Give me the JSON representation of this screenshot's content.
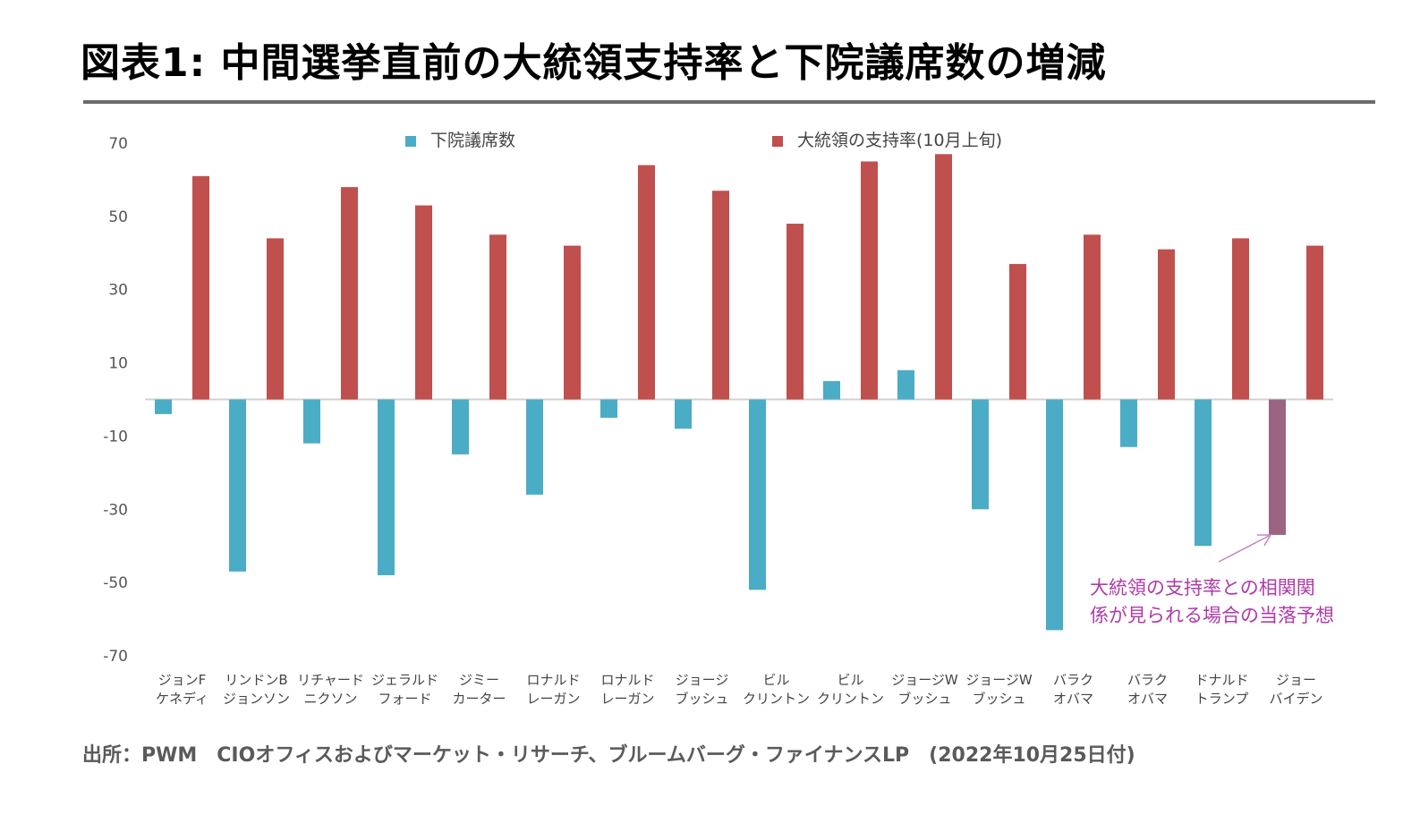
{
  "title": "図表1: 中間選挙直前の大統領支持率と下院議席数の増減",
  "source": "出所：PWM　CIOオフィスおよびマーケット・リサーチ、ブルームバーグ・ファイナンスLP　(2022年10月25日付)",
  "chart_data": {
    "type": "bar",
    "legend_position": "top",
    "grid": false,
    "ylim": [
      -70,
      70
    ],
    "yticks": [
      "70",
      "50",
      "30",
      "10",
      "-10",
      "-30",
      "-50",
      "-70"
    ],
    "categories": [
      [
        "ジョンF",
        "ケネディ"
      ],
      [
        "リンドンB",
        "ジョンソン"
      ],
      [
        "リチャード",
        "ニクソン"
      ],
      [
        "ジェラルド",
        "フォード"
      ],
      [
        "ジミー",
        "カーター"
      ],
      [
        "ロナルド",
        "レーガン"
      ],
      [
        "ロナルド",
        "レーガン"
      ],
      [
        "ジョージ",
        "ブッシュ"
      ],
      [
        "ビル",
        "クリントン"
      ],
      [
        "ビル",
        "クリントン"
      ],
      [
        "ジョージW",
        "ブッシュ"
      ],
      [
        "ジョージW",
        "ブッシュ"
      ],
      [
        "バラク",
        "オバマ"
      ],
      [
        "バラク",
        "オバマ"
      ],
      [
        "ドナルド",
        "トランプ"
      ],
      [
        "ジョー",
        "バイデン"
      ]
    ],
    "series": [
      {
        "name": "下院議席数",
        "color": "#4bacc6",
        "values": [
          -4,
          -47,
          -12,
          -48,
          -15,
          -26,
          -5,
          -8,
          -52,
          5,
          8,
          -30,
          -63,
          -13,
          -40,
          -37
        ],
        "point_colors": {
          "15": "#9b6581"
        }
      },
      {
        "name": "大統領の支持率(10月上旬)",
        "color": "#c0504d",
        "values": [
          61,
          44,
          58,
          53,
          45,
          42,
          64,
          57,
          48,
          65,
          67,
          37,
          45,
          41,
          44,
          42
        ]
      }
    ],
    "annotation": {
      "lines": [
        "大統領の支持率との相関関",
        "係が見られる場合の当落予想"
      ],
      "color": "#b03aa8",
      "target_index": 15
    }
  }
}
